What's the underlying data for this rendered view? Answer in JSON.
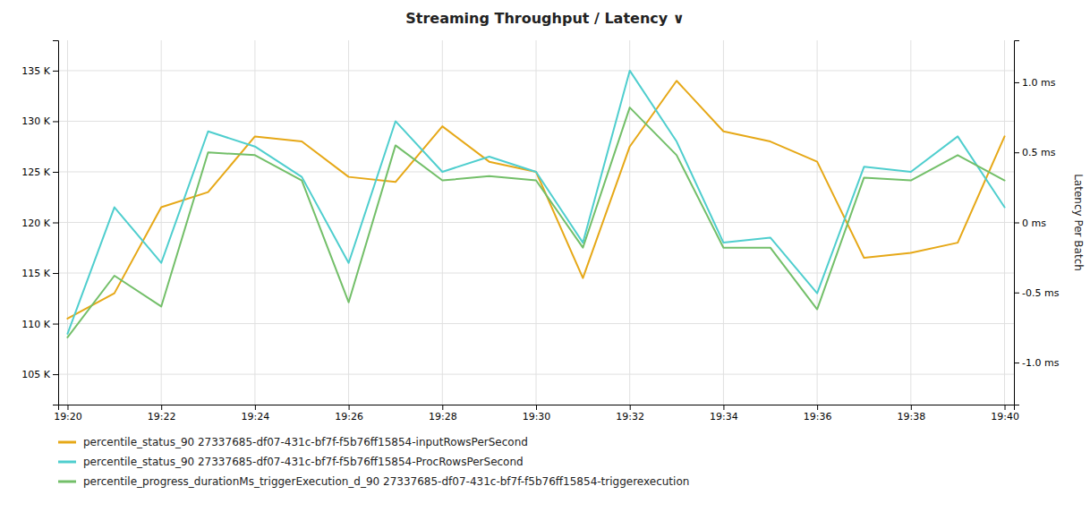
{
  "chart_data": {
    "type": "line",
    "title": "Streaming Throughput / Latency  ∨",
    "y2label": "Latency Per Batch",
    "x": [
      0,
      1,
      2,
      3,
      4,
      5,
      6,
      7,
      8,
      9,
      10,
      11,
      12,
      13,
      14,
      15,
      16,
      17,
      18,
      19,
      20
    ],
    "xlim": [
      -0.2,
      20.2
    ],
    "xticks": [
      {
        "value": 0,
        "label": "19:20"
      },
      {
        "value": 2,
        "label": "19:22"
      },
      {
        "value": 4,
        "label": "19:24"
      },
      {
        "value": 6,
        "label": "19:26"
      },
      {
        "value": 8,
        "label": "19:28"
      },
      {
        "value": 10,
        "label": "19:30"
      },
      {
        "value": 12,
        "label": "19:32"
      },
      {
        "value": 14,
        "label": "19:34"
      },
      {
        "value": 16,
        "label": "19:36"
      },
      {
        "value": 18,
        "label": "19:38"
      },
      {
        "value": 20,
        "label": "19:40"
      }
    ],
    "ylim": [
      102000,
      138000
    ],
    "yticks": [
      {
        "value": 105000,
        "label": "105 K"
      },
      {
        "value": 110000,
        "label": "110 K"
      },
      {
        "value": 115000,
        "label": "115 K"
      },
      {
        "value": 120000,
        "label": "120 K"
      },
      {
        "value": 125000,
        "label": "125 K"
      },
      {
        "value": 130000,
        "label": "130 K"
      },
      {
        "value": 135000,
        "label": "135 K"
      }
    ],
    "y2lim": [
      -1.3,
      1.3
    ],
    "y2ticks": [
      {
        "value": -1.0,
        "label": "-1.0 ms"
      },
      {
        "value": -0.5,
        "label": "-0.5 ms"
      },
      {
        "value": 0.0,
        "label": "0 ms"
      },
      {
        "value": 0.5,
        "label": "0.5 ms"
      },
      {
        "value": 1.0,
        "label": "1.0 ms"
      }
    ],
    "grid": true,
    "series": [
      {
        "name": "percentile_status_90 27337685-df07-431c-bf7f-f5b76ff15854-inputRowsPerSecond",
        "color": "#e6a817",
        "values": [
          110500,
          113000,
          121500,
          123000,
          128500,
          128000,
          124500,
          124000,
          129500,
          126000,
          125000,
          114500,
          127500,
          134000,
          129000,
          128000,
          126000,
          116500,
          117000,
          118000,
          128500
        ]
      },
      {
        "name": "percentile_status_90 27337685-df07-431c-bf7f-f5b76ff15854-ProcRowsPerSecond",
        "color": "#4fcece",
        "values": [
          109000,
          121500,
          116000,
          129000,
          127500,
          124500,
          116000,
          130000,
          125000,
          126500,
          125000,
          118000,
          135000,
          128000,
          118000,
          118500,
          113000,
          125500,
          125000,
          128500,
          121500
        ]
      },
      {
        "name": "percentile_progress_durationMs_triggerExecution_d_90 27337685-df07-431c-bf7f-f5b76ff15854-triggerexecution",
        "color": "#73bf69",
        "axis": "y2",
        "values": [
          -0.82,
          -0.38,
          -0.6,
          0.5,
          0.48,
          0.3,
          -0.57,
          0.55,
          0.3,
          0.33,
          0.3,
          -0.18,
          0.82,
          0.48,
          -0.18,
          -0.18,
          -0.62,
          0.32,
          0.3,
          0.48,
          0.3
        ]
      }
    ]
  }
}
